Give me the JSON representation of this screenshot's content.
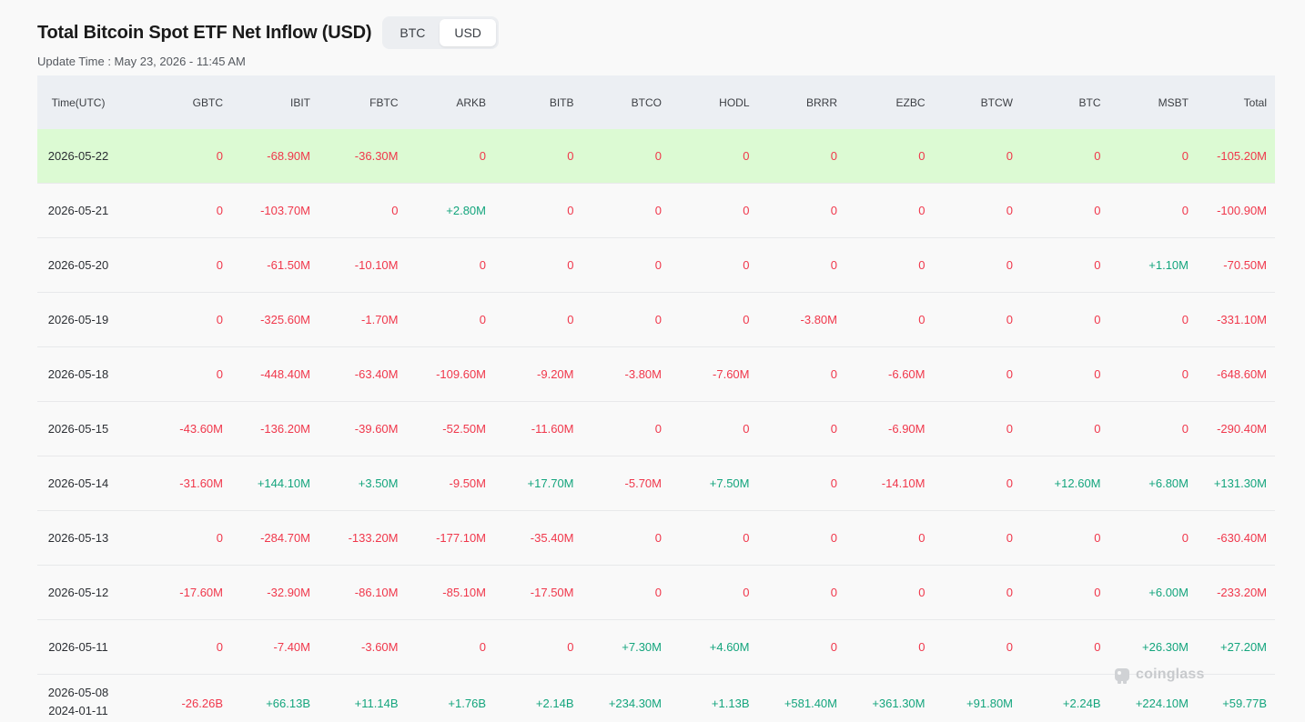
{
  "header": {
    "title": "Total Bitcoin Spot ETF Net Inflow (USD)",
    "toggle": [
      "BTC",
      "USD"
    ],
    "active_toggle": "USD",
    "update_time": "Update Time : May 23, 2026 - 11:45 AM"
  },
  "table": {
    "columns": [
      "Time(UTC)",
      "GBTC",
      "IBIT",
      "FBTC",
      "ARKB",
      "BITB",
      "BTCO",
      "HODL",
      "BRRR",
      "EZBC",
      "BTCW",
      "BTC",
      "MSBT",
      "Total"
    ],
    "rows": [
      {
        "time": "2026-05-22",
        "values": [
          "0",
          "-68.90M",
          "-36.30M",
          "0",
          "0",
          "0",
          "0",
          "0",
          "0",
          "0",
          "0",
          "0",
          "-105.20M"
        ],
        "highlight": true
      },
      {
        "time": "2026-05-21",
        "values": [
          "0",
          "-103.70M",
          "0",
          "+2.80M",
          "0",
          "0",
          "0",
          "0",
          "0",
          "0",
          "0",
          "0",
          "-100.90M"
        ]
      },
      {
        "time": "2026-05-20",
        "values": [
          "0",
          "-61.50M",
          "-10.10M",
          "0",
          "0",
          "0",
          "0",
          "0",
          "0",
          "0",
          "0",
          "+1.10M",
          "-70.50M"
        ]
      },
      {
        "time": "2026-05-19",
        "values": [
          "0",
          "-325.60M",
          "-1.70M",
          "0",
          "0",
          "0",
          "0",
          "-3.80M",
          "0",
          "0",
          "0",
          "0",
          "-331.10M"
        ]
      },
      {
        "time": "2026-05-18",
        "values": [
          "0",
          "-448.40M",
          "-63.40M",
          "-109.60M",
          "-9.20M",
          "-3.80M",
          "-7.60M",
          "0",
          "-6.60M",
          "0",
          "0",
          "0",
          "-648.60M"
        ]
      },
      {
        "time": "2026-05-15",
        "values": [
          "-43.60M",
          "-136.20M",
          "-39.60M",
          "-52.50M",
          "-11.60M",
          "0",
          "0",
          "0",
          "-6.90M",
          "0",
          "0",
          "0",
          "-290.40M"
        ]
      },
      {
        "time": "2026-05-14",
        "values": [
          "-31.60M",
          "+144.10M",
          "+3.50M",
          "-9.50M",
          "+17.70M",
          "-5.70M",
          "+7.50M",
          "0",
          "-14.10M",
          "0",
          "+12.60M",
          "+6.80M",
          "+131.30M"
        ]
      },
      {
        "time": "2026-05-13",
        "values": [
          "0",
          "-284.70M",
          "-133.20M",
          "-177.10M",
          "-35.40M",
          "0",
          "0",
          "0",
          "0",
          "0",
          "0",
          "0",
          "-630.40M"
        ]
      },
      {
        "time": "2026-05-12",
        "values": [
          "-17.60M",
          "-32.90M",
          "-86.10M",
          "-85.10M",
          "-17.50M",
          "0",
          "0",
          "0",
          "0",
          "0",
          "0",
          "+6.00M",
          "-233.20M"
        ]
      },
      {
        "time": "2026-05-11",
        "values": [
          "0",
          "-7.40M",
          "-3.60M",
          "0",
          "0",
          "+7.30M",
          "+4.60M",
          "0",
          "0",
          "0",
          "0",
          "+26.30M",
          "+27.20M"
        ]
      }
    ],
    "summary": {
      "time_from": "2026-05-08",
      "time_to": "2024-01-11",
      "values": [
        "-26.26B",
        "+66.13B",
        "+11.14B",
        "+1.76B",
        "+2.14B",
        "+234.30M",
        "+1.13B",
        "+581.40M",
        "+361.30M",
        "+91.80M",
        "+2.24B",
        "+224.10M",
        "+59.77B"
      ]
    }
  },
  "watermark": "coinglass",
  "colors": {
    "negative": "#f0374b",
    "positive": "#14a57d",
    "highlight_row": "#dcfad3",
    "header_bg": "#eceff3"
  }
}
